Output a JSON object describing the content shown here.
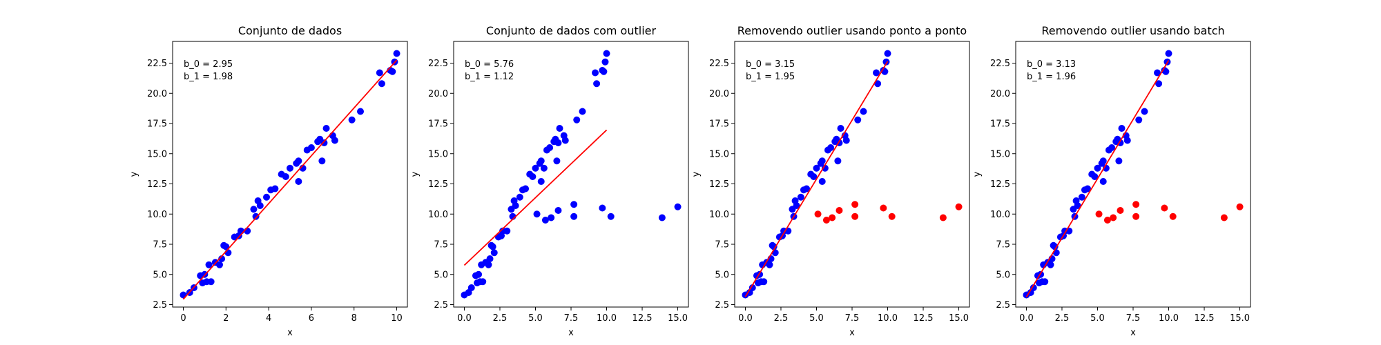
{
  "chart_data": [
    {
      "type": "scatter",
      "title": "Conjunto de dados",
      "xlabel": "x",
      "ylabel": "y",
      "annotations": [
        "b_0 = 2.95",
        "b_1 = 1.98"
      ],
      "xlim": [
        -0.5,
        10.5
      ],
      "ylim": [
        2.3,
        24.3
      ],
      "xticks": [
        0,
        2,
        4,
        6,
        8,
        10
      ],
      "yticks": [
        2.5,
        5.0,
        7.5,
        10.0,
        12.5,
        15.0,
        17.5,
        20.0,
        22.5
      ],
      "grid": false,
      "series": [
        {
          "color": "#0000ff",
          "points": [
            [
              0.0,
              3.3
            ],
            [
              0.3,
              3.5
            ],
            [
              0.5,
              3.9
            ],
            [
              0.8,
              4.9
            ],
            [
              0.9,
              4.3
            ],
            [
              1.0,
              5.0
            ],
            [
              1.1,
              4.4
            ],
            [
              1.2,
              5.8
            ],
            [
              1.3,
              4.4
            ],
            [
              1.5,
              6.0
            ],
            [
              1.7,
              5.8
            ],
            [
              1.8,
              6.3
            ],
            [
              1.9,
              7.4
            ],
            [
              2.0,
              7.3
            ],
            [
              2.1,
              6.8
            ],
            [
              2.4,
              8.1
            ],
            [
              2.6,
              8.2
            ],
            [
              2.7,
              8.6
            ],
            [
              3.0,
              8.6
            ],
            [
              3.3,
              10.4
            ],
            [
              3.4,
              9.8
            ],
            [
              3.5,
              11.1
            ],
            [
              3.6,
              10.7
            ],
            [
              3.9,
              11.4
            ],
            [
              4.1,
              12.0
            ],
            [
              4.3,
              12.1
            ],
            [
              4.6,
              13.3
            ],
            [
              4.8,
              13.1
            ],
            [
              5.0,
              13.8
            ],
            [
              5.3,
              14.2
            ],
            [
              5.4,
              14.4
            ],
            [
              5.4,
              12.7
            ],
            [
              5.6,
              13.8
            ],
            [
              5.8,
              15.3
            ],
            [
              6.0,
              15.5
            ],
            [
              6.3,
              16.0
            ],
            [
              6.4,
              16.2
            ],
            [
              6.5,
              14.4
            ],
            [
              6.6,
              15.9
            ],
            [
              6.7,
              17.1
            ],
            [
              7.0,
              16.5
            ],
            [
              7.1,
              16.1
            ],
            [
              7.9,
              17.8
            ],
            [
              8.3,
              18.5
            ],
            [
              9.2,
              21.7
            ],
            [
              9.3,
              20.8
            ],
            [
              9.7,
              21.9
            ],
            [
              9.8,
              21.8
            ],
            [
              9.9,
              22.6
            ],
            [
              10.0,
              23.3
            ]
          ]
        }
      ],
      "lines": [
        {
          "color": "#ff0000",
          "x": [
            0,
            10
          ],
          "y": [
            2.95,
            22.75
          ]
        }
      ]
    },
    {
      "type": "scatter",
      "title": "Conjunto de dados com outlier",
      "xlabel": "x",
      "ylabel": "y",
      "annotations": [
        "b_0 = 5.76",
        "b_1 = 1.12"
      ],
      "xlim": [
        -0.75,
        15.75
      ],
      "ylim": [
        2.3,
        24.3
      ],
      "xticks": [
        0.0,
        2.5,
        5.0,
        7.5,
        10.0,
        12.5,
        15.0
      ],
      "yticks": [
        2.5,
        5.0,
        7.5,
        10.0,
        12.5,
        15.0,
        17.5,
        20.0,
        22.5
      ],
      "grid": false,
      "series": [
        {
          "color": "#0000ff",
          "points": [
            [
              0.0,
              3.3
            ],
            [
              0.3,
              3.5
            ],
            [
              0.5,
              3.9
            ],
            [
              0.8,
              4.9
            ],
            [
              0.9,
              4.3
            ],
            [
              1.0,
              5.0
            ],
            [
              1.1,
              4.4
            ],
            [
              1.2,
              5.8
            ],
            [
              1.3,
              4.4
            ],
            [
              1.5,
              6.0
            ],
            [
              1.7,
              5.8
            ],
            [
              1.8,
              6.3
            ],
            [
              1.9,
              7.4
            ],
            [
              2.0,
              7.3
            ],
            [
              2.1,
              6.8
            ],
            [
              2.4,
              8.1
            ],
            [
              2.6,
              8.2
            ],
            [
              2.7,
              8.6
            ],
            [
              3.0,
              8.6
            ],
            [
              3.3,
              10.4
            ],
            [
              3.4,
              9.8
            ],
            [
              3.5,
              11.1
            ],
            [
              3.6,
              10.7
            ],
            [
              3.9,
              11.4
            ],
            [
              4.1,
              12.0
            ],
            [
              4.3,
              12.1
            ],
            [
              4.6,
              13.3
            ],
            [
              4.8,
              13.1
            ],
            [
              5.0,
              13.8
            ],
            [
              5.3,
              14.2
            ],
            [
              5.4,
              14.4
            ],
            [
              5.4,
              12.7
            ],
            [
              5.6,
              13.8
            ],
            [
              5.8,
              15.3
            ],
            [
              6.0,
              15.5
            ],
            [
              6.3,
              16.0
            ],
            [
              6.4,
              16.2
            ],
            [
              6.5,
              14.4
            ],
            [
              6.6,
              15.9
            ],
            [
              6.7,
              17.1
            ],
            [
              7.0,
              16.5
            ],
            [
              7.1,
              16.1
            ],
            [
              7.9,
              17.8
            ],
            [
              8.3,
              18.5
            ],
            [
              9.2,
              21.7
            ],
            [
              9.3,
              20.8
            ],
            [
              9.7,
              21.9
            ],
            [
              9.8,
              21.8
            ],
            [
              9.9,
              22.6
            ],
            [
              10.0,
              23.3
            ],
            [
              5.1,
              10.0
            ],
            [
              5.7,
              9.5
            ],
            [
              6.1,
              9.7
            ],
            [
              6.6,
              10.3
            ],
            [
              7.7,
              10.8
            ],
            [
              7.7,
              9.8
            ],
            [
              9.7,
              10.5
            ],
            [
              10.3,
              9.8
            ],
            [
              13.9,
              9.7
            ],
            [
              15.0,
              10.6
            ]
          ]
        }
      ],
      "lines": [
        {
          "color": "#ff0000",
          "x": [
            0,
            10
          ],
          "y": [
            5.76,
            16.96
          ]
        }
      ]
    },
    {
      "type": "scatter",
      "title": "Removendo outlier usando ponto a ponto",
      "xlabel": "x",
      "ylabel": "y",
      "annotations": [
        "b_0 = 3.15",
        "b_1 = 1.95"
      ],
      "xlim": [
        -0.75,
        15.75
      ],
      "ylim": [
        2.3,
        24.3
      ],
      "xticks": [
        0.0,
        2.5,
        5.0,
        7.5,
        10.0,
        12.5,
        15.0
      ],
      "yticks": [
        2.5,
        5.0,
        7.5,
        10.0,
        12.5,
        15.0,
        17.5,
        20.0,
        22.5
      ],
      "grid": false,
      "series": [
        {
          "color": "#0000ff",
          "points": [
            [
              0.0,
              3.3
            ],
            [
              0.3,
              3.5
            ],
            [
              0.5,
              3.9
            ],
            [
              0.8,
              4.9
            ],
            [
              0.9,
              4.3
            ],
            [
              1.0,
              5.0
            ],
            [
              1.1,
              4.4
            ],
            [
              1.2,
              5.8
            ],
            [
              1.3,
              4.4
            ],
            [
              1.5,
              6.0
            ],
            [
              1.7,
              5.8
            ],
            [
              1.8,
              6.3
            ],
            [
              1.9,
              7.4
            ],
            [
              2.0,
              7.3
            ],
            [
              2.1,
              6.8
            ],
            [
              2.4,
              8.1
            ],
            [
              2.6,
              8.2
            ],
            [
              2.7,
              8.6
            ],
            [
              3.0,
              8.6
            ],
            [
              3.3,
              10.4
            ],
            [
              3.4,
              9.8
            ],
            [
              3.5,
              11.1
            ],
            [
              3.6,
              10.7
            ],
            [
              3.9,
              11.4
            ],
            [
              4.1,
              12.0
            ],
            [
              4.3,
              12.1
            ],
            [
              4.6,
              13.3
            ],
            [
              4.8,
              13.1
            ],
            [
              5.0,
              13.8
            ],
            [
              5.3,
              14.2
            ],
            [
              5.4,
              14.4
            ],
            [
              5.4,
              12.7
            ],
            [
              5.6,
              13.8
            ],
            [
              5.8,
              15.3
            ],
            [
              6.0,
              15.5
            ],
            [
              6.3,
              16.0
            ],
            [
              6.4,
              16.2
            ],
            [
              6.5,
              14.4
            ],
            [
              6.6,
              15.9
            ],
            [
              6.7,
              17.1
            ],
            [
              7.0,
              16.5
            ],
            [
              7.1,
              16.1
            ],
            [
              7.9,
              17.8
            ],
            [
              8.3,
              18.5
            ],
            [
              9.2,
              21.7
            ],
            [
              9.3,
              20.8
            ],
            [
              9.7,
              21.9
            ],
            [
              9.8,
              21.8
            ],
            [
              9.9,
              22.6
            ],
            [
              10.0,
              23.3
            ]
          ]
        },
        {
          "color": "#ff0000",
          "points": [
            [
              5.1,
              10.0
            ],
            [
              5.7,
              9.5
            ],
            [
              6.1,
              9.7
            ],
            [
              6.6,
              10.3
            ],
            [
              7.7,
              10.8
            ],
            [
              7.7,
              9.8
            ],
            [
              9.7,
              10.5
            ],
            [
              10.3,
              9.8
            ],
            [
              13.9,
              9.7
            ],
            [
              15.0,
              10.6
            ]
          ]
        }
      ],
      "lines": [
        {
          "color": "#ff0000",
          "x": [
            0,
            10
          ],
          "y": [
            3.15,
            22.65
          ]
        }
      ]
    },
    {
      "type": "scatter",
      "title": "Removendo outlier usando batch",
      "xlabel": "x",
      "ylabel": "y",
      "annotations": [
        "b_0 = 3.13",
        "b_1 = 1.96"
      ],
      "xlim": [
        -0.75,
        15.75
      ],
      "ylim": [
        2.3,
        24.3
      ],
      "xticks": [
        0.0,
        2.5,
        5.0,
        7.5,
        10.0,
        12.5,
        15.0
      ],
      "yticks": [
        2.5,
        5.0,
        7.5,
        10.0,
        12.5,
        15.0,
        17.5,
        20.0,
        22.5
      ],
      "grid": false,
      "series": [
        {
          "color": "#0000ff",
          "points": [
            [
              0.0,
              3.3
            ],
            [
              0.3,
              3.5
            ],
            [
              0.5,
              3.9
            ],
            [
              0.8,
              4.9
            ],
            [
              0.9,
              4.3
            ],
            [
              1.0,
              5.0
            ],
            [
              1.1,
              4.4
            ],
            [
              1.2,
              5.8
            ],
            [
              1.3,
              4.4
            ],
            [
              1.5,
              6.0
            ],
            [
              1.7,
              5.8
            ],
            [
              1.8,
              6.3
            ],
            [
              1.9,
              7.4
            ],
            [
              2.0,
              7.3
            ],
            [
              2.1,
              6.8
            ],
            [
              2.4,
              8.1
            ],
            [
              2.6,
              8.2
            ],
            [
              2.7,
              8.6
            ],
            [
              3.0,
              8.6
            ],
            [
              3.3,
              10.4
            ],
            [
              3.4,
              9.8
            ],
            [
              3.5,
              11.1
            ],
            [
              3.6,
              10.7
            ],
            [
              3.9,
              11.4
            ],
            [
              4.1,
              12.0
            ],
            [
              4.3,
              12.1
            ],
            [
              4.6,
              13.3
            ],
            [
              4.8,
              13.1
            ],
            [
              5.0,
              13.8
            ],
            [
              5.3,
              14.2
            ],
            [
              5.4,
              14.4
            ],
            [
              5.4,
              12.7
            ],
            [
              5.6,
              13.8
            ],
            [
              5.8,
              15.3
            ],
            [
              6.0,
              15.5
            ],
            [
              6.3,
              16.0
            ],
            [
              6.4,
              16.2
            ],
            [
              6.5,
              14.4
            ],
            [
              6.6,
              15.9
            ],
            [
              6.7,
              17.1
            ],
            [
              7.0,
              16.5
            ],
            [
              7.1,
              16.1
            ],
            [
              7.9,
              17.8
            ],
            [
              8.3,
              18.5
            ],
            [
              9.2,
              21.7
            ],
            [
              9.3,
              20.8
            ],
            [
              9.7,
              21.9
            ],
            [
              9.8,
              21.8
            ],
            [
              9.9,
              22.6
            ],
            [
              10.0,
              23.3
            ]
          ]
        },
        {
          "color": "#ff0000",
          "points": [
            [
              5.1,
              10.0
            ],
            [
              5.7,
              9.5
            ],
            [
              6.1,
              9.7
            ],
            [
              6.6,
              10.3
            ],
            [
              7.7,
              10.8
            ],
            [
              7.7,
              9.8
            ],
            [
              9.7,
              10.5
            ],
            [
              10.3,
              9.8
            ],
            [
              13.9,
              9.7
            ],
            [
              15.0,
              10.6
            ]
          ]
        }
      ],
      "lines": [
        {
          "color": "#ff0000",
          "x": [
            0,
            10
          ],
          "y": [
            3.13,
            22.73
          ]
        }
      ]
    }
  ]
}
